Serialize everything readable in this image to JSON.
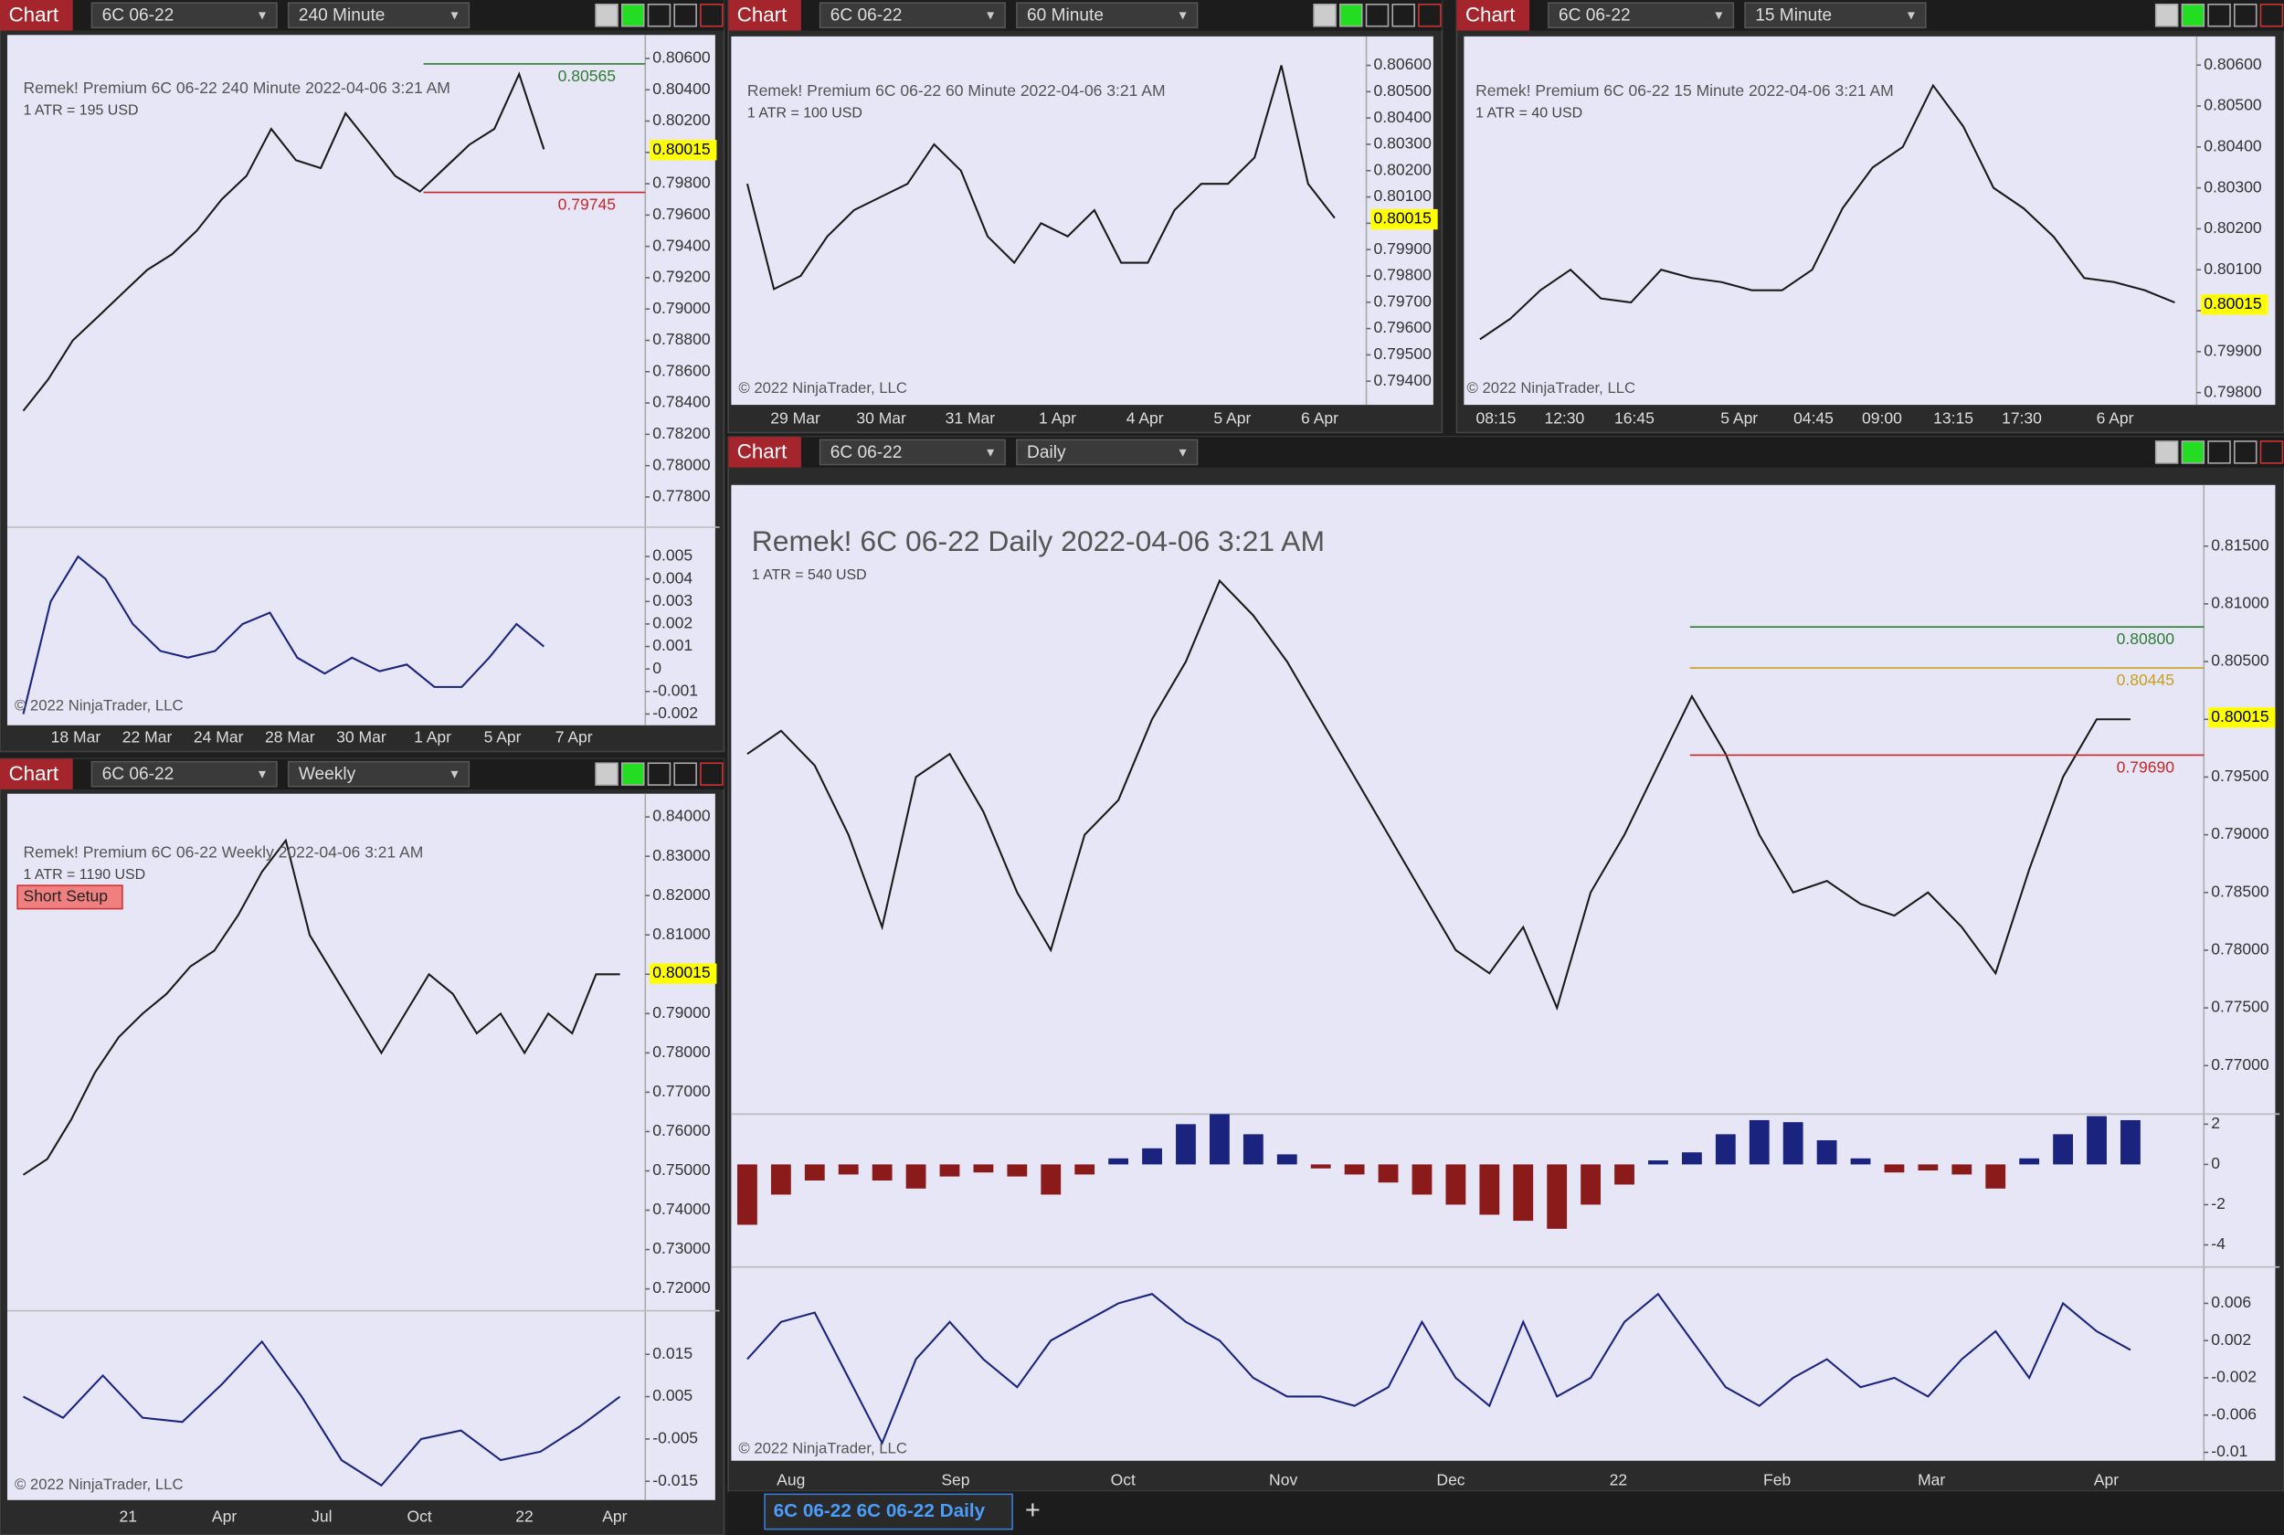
{
  "panels": [
    {
      "header": {
        "tab": "Chart",
        "instrument": "6C 06-22",
        "period": "240 Minute"
      },
      "info": "Remek!  Premium  6C 06-22  240 Minute  2022-04-06 3:21 AM",
      "atr": "1 ATR = 195 USD",
      "copyright": "© 2022 NinjaTrader, LLC",
      "xlabels": [
        "18 Mar",
        "22 Mar",
        "24 Mar",
        "28 Mar",
        "30 Mar",
        "1 Apr",
        "5 Apr",
        "7 Apr"
      ],
      "subpanels": [
        {
          "type": "line",
          "color": "#1a1a1a",
          "ylim": [
            0.777,
            0.8075
          ],
          "yticks": [
            {
              "value": 0.806,
              "label": "0.80600"
            },
            {
              "value": 0.804,
              "label": "0.80400"
            },
            {
              "value": 0.802,
              "label": "0.80200"
            },
            {
              "value": 0.8,
              "label": "0.80000"
            },
            {
              "value": 0.798,
              "label": "0.79800"
            },
            {
              "value": 0.796,
              "label": "0.79600"
            },
            {
              "value": 0.794,
              "label": "0.79400"
            },
            {
              "value": 0.792,
              "label": "0.79200"
            },
            {
              "value": 0.79,
              "label": "0.79000"
            },
            {
              "value": 0.788,
              "label": "0.78800"
            },
            {
              "value": 0.786,
              "label": "0.78600"
            },
            {
              "value": 0.784,
              "label": "0.78400"
            },
            {
              "value": 0.782,
              "label": "0.78200"
            },
            {
              "value": 0.78,
              "label": "0.78000"
            },
            {
              "value": 0.778,
              "label": "0.77800"
            }
          ],
          "values": [
            0.7835,
            0.7855,
            0.788,
            0.7895,
            0.791,
            0.7925,
            0.7935,
            0.795,
            0.797,
            0.7985,
            0.8015,
            0.7995,
            0.799,
            0.8025,
            0.8005,
            0.7985,
            0.7975,
            0.799,
            0.8005,
            0.8015,
            0.805,
            0.8002
          ],
          "price_labels": [
            {
              "value": 0.80565,
              "label": "0.80565",
              "color": "#2e7d32",
              "boxed": false
            },
            {
              "value": 0.80015,
              "label": "0.80015",
              "color": "#ffff00",
              "boxed": true
            },
            {
              "value": 0.79745,
              "label": "0.79745",
              "color": "#c62828",
              "boxed": false
            }
          ]
        },
        {
          "type": "line",
          "color": "#1a237e",
          "ylim": [
            -0.0025,
            0.0063
          ],
          "yticks": [
            0.005,
            0.004,
            0.003,
            0.002,
            0.001,
            0,
            -0.001,
            -0.002
          ],
          "values": [
            -0.002,
            0.003,
            0.005,
            0.004,
            0.002,
            0.0008,
            0.0005,
            0.0008,
            0.002,
            0.0025,
            0.0005,
            -0.0002,
            0.0005,
            -0.0001,
            0.0002,
            -0.0008,
            -0.0008,
            0.0005,
            0.002,
            0.001
          ]
        }
      ]
    },
    {
      "header": {
        "tab": "Chart",
        "instrument": "6C 06-22",
        "period": "60 Minute"
      },
      "info": "Remek!  Premium  6C 06-22  60 Minute  2022-04-06 3:21 AM",
      "atr": "1 ATR = 100 USD",
      "copyright": "© 2022 NinjaTrader, LLC",
      "xlabels": [
        "29 Mar",
        "30 Mar",
        "31 Mar",
        "1 Apr",
        "4 Apr",
        "5 Apr",
        "6 Apr"
      ],
      "subpanels": [
        {
          "type": "line",
          "color": "#1a1a1a",
          "ylim": [
            0.7931,
            0.8071
          ],
          "yticks": [
            {
              "value": 0.806,
              "label": "0.80600"
            },
            {
              "value": 0.805,
              "label": "0.80500"
            },
            {
              "value": 0.804,
              "label": "0.80400"
            },
            {
              "value": 0.803,
              "label": "0.80300"
            },
            {
              "value": 0.802,
              "label": "0.80200"
            },
            {
              "value": 0.801,
              "label": "0.80100"
            },
            {
              "value": 0.8,
              "label": "0.80000"
            },
            {
              "value": 0.799,
              "label": "0.79900"
            },
            {
              "value": 0.798,
              "label": "0.79800"
            },
            {
              "value": 0.797,
              "label": "0.79700"
            },
            {
              "value": 0.796,
              "label": "0.79600"
            },
            {
              "value": 0.795,
              "label": "0.79500"
            },
            {
              "value": 0.794,
              "label": "0.79400"
            }
          ],
          "values": [
            0.8015,
            0.7975,
            0.798,
            0.7995,
            0.8005,
            0.801,
            0.8015,
            0.803,
            0.802,
            0.7995,
            0.7985,
            0.8,
            0.7995,
            0.8005,
            0.7985,
            0.7985,
            0.8005,
            0.8015,
            0.8015,
            0.8025,
            0.806,
            0.8015,
            0.8002
          ],
          "price_labels": [
            {
              "value": 0.80015,
              "label": "0.80015",
              "color": "#ffff00",
              "boxed": true
            }
          ]
        }
      ]
    },
    {
      "header": {
        "tab": "Chart",
        "instrument": "6C 06-22",
        "period": "15 Minute"
      },
      "info": "Remek!  Premium  6C 06-22  15 Minute  2022-04-06 3:21 AM",
      "atr": "1 ATR = 40 USD",
      "copyright": "© 2022 NinjaTrader, LLC",
      "xlabels": [
        "08:15",
        "12:30",
        "16:45",
        "5 Apr",
        "04:45",
        "09:00",
        "13:15",
        "17:30",
        "6 Apr"
      ],
      "subpanels": [
        {
          "type": "line",
          "color": "#1a1a1a",
          "ylim": [
            0.7977,
            0.8067
          ],
          "yticks": [
            {
              "value": 0.806,
              "label": "0.80600"
            },
            {
              "value": 0.805,
              "label": "0.80500"
            },
            {
              "value": 0.804,
              "label": "0.80400"
            },
            {
              "value": 0.803,
              "label": "0.80300"
            },
            {
              "value": 0.802,
              "label": "0.80200"
            },
            {
              "value": 0.801,
              "label": "0.80100"
            },
            {
              "value": 0.8,
              "label": "0.80000"
            },
            {
              "value": 0.799,
              "label": "0.79900"
            },
            {
              "value": 0.798,
              "label": "0.79800"
            }
          ],
          "values": [
            0.7993,
            0.7998,
            0.8005,
            0.801,
            0.8003,
            0.8002,
            0.801,
            0.8008,
            0.8007,
            0.8005,
            0.8005,
            0.801,
            0.8025,
            0.8035,
            0.804,
            0.8055,
            0.8045,
            0.803,
            0.8025,
            0.8018,
            0.8008,
            0.8007,
            0.8005,
            0.8002
          ],
          "price_labels": [
            {
              "value": 0.80015,
              "label": "0.80015",
              "color": "#ffff00",
              "boxed": true
            }
          ]
        }
      ]
    },
    {
      "header": {
        "tab": "Chart",
        "instrument": "6C 06-22",
        "period": "Weekly"
      },
      "info": "Remek!  Premium  6C 06-22  Weekly  2022-04-06 3:21 AM",
      "atr": "1 ATR = 1190 USD",
      "button": "Short Setup",
      "copyright": "© 2022 NinjaTrader, LLC",
      "xlabels": [
        "21",
        "Apr",
        "Jul",
        "Oct",
        "22",
        "Apr"
      ],
      "subpanels": [
        {
          "type": "line",
          "color": "#1a1a1a",
          "ylim": [
            0.7163,
            0.8459
          ],
          "yticks": [
            {
              "value": 0.84,
              "label": "0.84000"
            },
            {
              "value": 0.83,
              "label": "0.83000"
            },
            {
              "value": 0.82,
              "label": "0.82000"
            },
            {
              "value": 0.81,
              "label": "0.81000"
            },
            {
              "value": 0.8,
              "label": "0.80000"
            },
            {
              "value": 0.79,
              "label": "0.79000"
            },
            {
              "value": 0.78,
              "label": "0.78000"
            },
            {
              "value": 0.77,
              "label": "0.77000"
            },
            {
              "value": 0.76,
              "label": "0.76000"
            },
            {
              "value": 0.75,
              "label": "0.75000"
            },
            {
              "value": 0.74,
              "label": "0.74000"
            },
            {
              "value": 0.73,
              "label": "0.73000"
            },
            {
              "value": 0.72,
              "label": "0.72000"
            }
          ],
          "values": [
            0.749,
            0.753,
            0.763,
            0.775,
            0.784,
            0.79,
            0.795,
            0.802,
            0.806,
            0.815,
            0.826,
            0.834,
            0.81,
            0.8,
            0.79,
            0.78,
            0.79,
            0.8,
            0.795,
            0.785,
            0.79,
            0.78,
            0.79,
            0.785,
            0.8,
            0.8
          ],
          "price_labels": [
            {
              "value": 0.80015,
              "label": "0.80015",
              "color": "#ffff00",
              "boxed": true
            }
          ]
        },
        {
          "type": "line",
          "color": "#1a237e",
          "ylim": [
            -0.0184,
            0.0253
          ],
          "yticks": [
            0.015,
            0.005,
            -0.005,
            -0.015
          ],
          "values": [
            0.005,
            0.0,
            0.01,
            0.0,
            -0.001,
            0.008,
            0.018,
            0.005,
            -0.01,
            -0.016,
            -0.005,
            -0.003,
            -0.01,
            -0.008,
            -0.002,
            0.005
          ]
        }
      ]
    },
    {
      "header": {
        "tab": "Chart",
        "instrument": "6C 06-22",
        "period": "Daily"
      },
      "info": "Remek!  6C 06-22  Daily  2022-04-06 3:21 AM",
      "atr": "1 ATR = 540 USD",
      "copyright": "© 2022 NinjaTrader, LLC",
      "xlabels": [
        "Aug",
        "Sep",
        "Oct",
        "Nov",
        "Dec",
        "22",
        "Feb",
        "Mar",
        "Apr"
      ],
      "subpanels": [
        {
          "type": "line",
          "color": "#1a1a1a",
          "ylim": [
            0.7658,
            0.8203
          ],
          "yticks": [
            {
              "value": 0.815,
              "label": "0.81500"
            },
            {
              "value": 0.81,
              "label": "0.81000"
            },
            {
              "value": 0.805,
              "label": "0.80500"
            },
            {
              "value": 0.8,
              "label": "0.80000"
            },
            {
              "value": 0.795,
              "label": "0.79500"
            },
            {
              "value": 0.79,
              "label": "0.79000"
            },
            {
              "value": 0.785,
              "label": "0.78500"
            },
            {
              "value": 0.78,
              "label": "0.78000"
            },
            {
              "value": 0.775,
              "label": "0.77500"
            },
            {
              "value": 0.77,
              "label": "0.77000"
            }
          ],
          "values": [
            0.797,
            0.799,
            0.796,
            0.79,
            0.782,
            0.795,
            0.797,
            0.792,
            0.785,
            0.78,
            0.79,
            0.793,
            0.8,
            0.805,
            0.812,
            0.809,
            0.805,
            0.8,
            0.795,
            0.79,
            0.785,
            0.78,
            0.778,
            0.782,
            0.775,
            0.785,
            0.79,
            0.796,
            0.802,
            0.797,
            0.79,
            0.785,
            0.786,
            0.784,
            0.783,
            0.785,
            0.782,
            0.778,
            0.787,
            0.795,
            0.8,
            0.8
          ],
          "price_labels": [
            {
              "value": 0.808,
              "label": "0.80800",
              "color": "#2e7d32",
              "boxed": false
            },
            {
              "value": 0.80445,
              "label": "0.80445",
              "color": "#c8a020",
              "boxed": false
            },
            {
              "value": 0.80015,
              "label": "0.80015",
              "color": "#ffff00",
              "boxed": true
            },
            {
              "value": 0.7969,
              "label": "0.79690",
              "color": "#c62828",
              "boxed": false
            }
          ]
        },
        {
          "type": "bar",
          "color": "#1a237e",
          "negative_color": "#8b1a1a",
          "ylim": [
            -5.1,
            2.5
          ],
          "yticks": [
            2,
            0,
            -2,
            -4
          ],
          "values": [
            -3,
            -1.5,
            -0.8,
            -0.5,
            -0.8,
            -1.2,
            -0.6,
            -0.4,
            -0.6,
            -1.5,
            -0.5,
            0.3,
            0.8,
            2,
            2.5,
            1.5,
            0.5,
            -0.2,
            -0.5,
            -0.9,
            -1.5,
            -2,
            -2.5,
            -2.8,
            -3.2,
            -2,
            -1,
            0.2,
            0.6,
            1.5,
            2.2,
            2.1,
            1.2,
            0.3,
            -0.4,
            -0.3,
            -0.5,
            -1.2,
            0.3,
            1.5,
            2.4,
            2.2
          ]
        },
        {
          "type": "line",
          "color": "#1a237e",
          "ylim": [
            -0.0109,
            0.0099
          ],
          "yticks": [
            0.006,
            0.002,
            -0.002,
            -0.006,
            -0.01
          ],
          "values": [
            0.0,
            0.004,
            0.005,
            -0.002,
            -0.009,
            0.0,
            0.004,
            0.0,
            -0.003,
            0.002,
            0.004,
            0.006,
            0.007,
            0.004,
            0.002,
            -0.002,
            -0.004,
            -0.004,
            -0.005,
            -0.003,
            0.004,
            -0.002,
            -0.005,
            0.004,
            -0.004,
            -0.002,
            0.004,
            0.007,
            0.002,
            -0.003,
            -0.005,
            -0.002,
            0.0,
            -0.003,
            -0.002,
            -0.004,
            0.0,
            0.003,
            -0.002,
            0.006,
            0.003,
            0.001
          ]
        }
      ]
    }
  ],
  "tabbar": {
    "tab": "6C 06-22 6C 06-22 Daily",
    "add": "+"
  }
}
